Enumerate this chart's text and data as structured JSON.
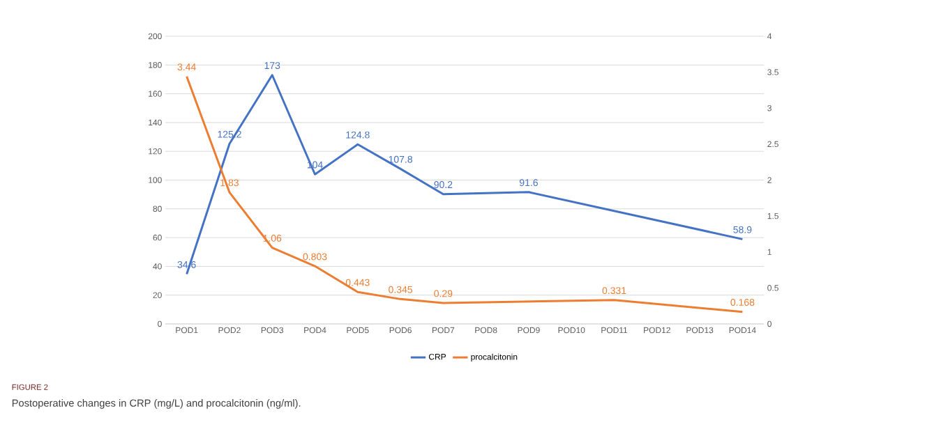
{
  "chart_data": {
    "type": "line",
    "categories": [
      "POD1",
      "POD2",
      "POD3",
      "POD4",
      "POD5",
      "POD6",
      "POD7",
      "POD8",
      "POD9",
      "POD10",
      "POD11",
      "POD12",
      "POD13",
      "POD14"
    ],
    "series": [
      {
        "name": "CRP",
        "color": "#4472c4",
        "values": [
          34.6,
          125.2,
          173,
          104,
          124.8,
          107.8,
          90.2,
          null,
          91.6,
          null,
          null,
          null,
          null,
          58.9
        ],
        "value_labels": [
          "34.6",
          "125.2",
          "173",
          "104",
          "124.8",
          "107.8",
          "90.2",
          null,
          "91.6",
          null,
          null,
          null,
          null,
          "58.9"
        ]
      },
      {
        "name": "procalcitonin",
        "color": "#ed7d31",
        "axis": "y2",
        "values": [
          3.44,
          1.83,
          1.06,
          0.803,
          0.443,
          0.345,
          0.29,
          null,
          null,
          null,
          0.331,
          null,
          null,
          0.168
        ],
        "value_labels": [
          "3.44",
          "1.83",
          "1.06",
          "0.803",
          "0.443",
          "0.345",
          "0.29",
          null,
          null,
          null,
          "0.331",
          null,
          null,
          "0.168"
        ]
      }
    ],
    "ylim": [
      0,
      200
    ],
    "yticks": [
      0,
      20,
      40,
      60,
      80,
      100,
      120,
      140,
      160,
      180,
      200
    ],
    "y2lim": [
      0,
      4
    ],
    "y2ticks": [
      0,
      0.5,
      1,
      1.5,
      2,
      2.5,
      3,
      3.5,
      4
    ],
    "grid": "y",
    "legend": "bottom",
    "marker": "none",
    "line_style": "solid",
    "annotations": [
      "FIGURE 2",
      "Postoperative changes in CRP (mg/L) and procalcitonin (ng/ml)."
    ]
  }
}
